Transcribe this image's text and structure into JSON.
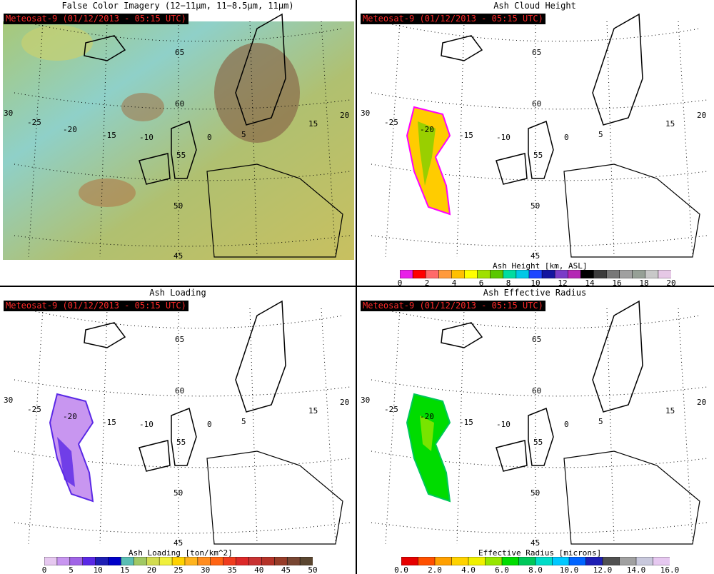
{
  "panels": [
    {
      "title": "False Color Imagery (12−11μm, 11−8.5μm, 11μm)",
      "badge": "Meteosat-9  (01/12/2013 - 05:15 UTC)"
    },
    {
      "title": "Ash Cloud Height",
      "badge": "Meteosat-9  (01/12/2013 - 05:15 UTC)"
    },
    {
      "title": "Ash Loading",
      "badge": "Meteosat-9  (01/12/2013 - 05:15 UTC)"
    },
    {
      "title": "Ash Effective Radius",
      "badge": "Meteosat-9  (01/12/2013 - 05:15 UTC)"
    }
  ],
  "grid_labels": {
    "lon": [
      "30",
      "-25",
      "-20",
      "-15",
      "-10",
      "0",
      "5",
      "15",
      "20"
    ],
    "lat": [
      "65",
      "60",
      "55",
      "50",
      "45"
    ]
  },
  "colorbars": {
    "height": {
      "title": "Ash Height [km, ASL]",
      "ticks": [
        "0",
        "2",
        "4",
        "6",
        "8",
        "10",
        "12",
        "14",
        "16",
        "18",
        "20"
      ],
      "colors": [
        "#e81ee8",
        "#ff0000",
        "#ff6a6a",
        "#ff9a3c",
        "#ffc000",
        "#ffff00",
        "#a0e000",
        "#5ac800",
        "#00dca0",
        "#00c8e6",
        "#1e46ff",
        "#1414a0",
        "#7a3cc8",
        "#b428b4",
        "#000000",
        "#3c3c3c",
        "#787878",
        "#a0a0a0",
        "#96a096",
        "#c8c8c8",
        "#e6c8e6"
      ]
    },
    "loading": {
      "title": "Ash Loading [ton/km^2]",
      "ticks": [
        "0",
        "5",
        "10",
        "15",
        "20",
        "25",
        "30",
        "35",
        "40",
        "45",
        "50"
      ],
      "colors": [
        "#e6c8f0",
        "#c896f0",
        "#a064e6",
        "#5a28e6",
        "#1e1eb4",
        "#0000c8",
        "#5abeb4",
        "#a0c864",
        "#d2dc50",
        "#f0f03c",
        "#ffd200",
        "#ffb41e",
        "#ff8c1e",
        "#ff6414",
        "#f03c1e",
        "#dc2828",
        "#c83232",
        "#b43228",
        "#963c28",
        "#784632",
        "#5a4630"
      ]
    },
    "radius": {
      "title": "Effective Radius [microns]",
      "ticks": [
        "0.0",
        "2.0",
        "4.0",
        "6.0",
        "8.0",
        "10.0",
        "12.0",
        "14.0",
        "16.0"
      ],
      "colors": [
        "#e60000",
        "#ff5000",
        "#ffa000",
        "#ffd200",
        "#f0f000",
        "#96e600",
        "#00dc00",
        "#00c85a",
        "#00dcc8",
        "#00c8ff",
        "#0064ff",
        "#1e1eb4",
        "#505050",
        "#a0a0a0",
        "#c8c8dc",
        "#e6c8f0"
      ]
    }
  },
  "legend_colors": {
    "badge_bg": "#000000",
    "badge_text": "#ff2a2a"
  }
}
